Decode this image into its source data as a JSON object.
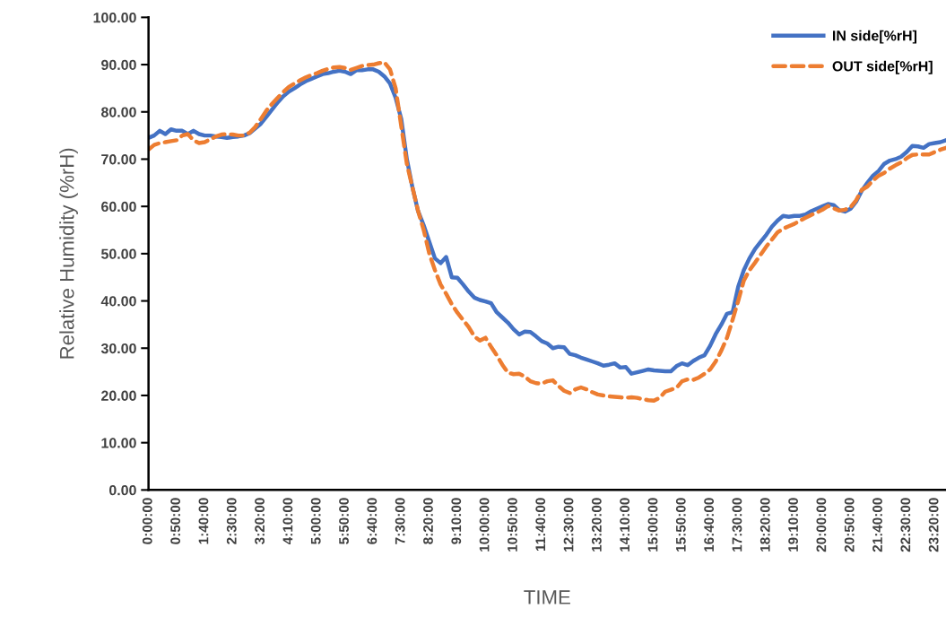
{
  "chart_data": {
    "type": "line",
    "xlabel": "TIME",
    "ylabel": "Relative Humidity (%rH)",
    "categories": [
      "0:00:00",
      null,
      null,
      null,
      null,
      "0:50:00",
      null,
      null,
      null,
      null,
      "1:40:00",
      null,
      null,
      null,
      null,
      "2:30:00",
      null,
      null,
      null,
      null,
      "3:20:00",
      null,
      null,
      null,
      null,
      "4:10:00",
      null,
      null,
      null,
      null,
      "5:00:00",
      null,
      null,
      null,
      null,
      "5:50:00",
      null,
      null,
      null,
      null,
      "6:40:00",
      null,
      null,
      null,
      null,
      "7:30:00",
      null,
      null,
      null,
      null,
      "8:20:00",
      null,
      null,
      null,
      null,
      "9:10:00",
      null,
      null,
      null,
      null,
      "10:00:00",
      null,
      null,
      null,
      null,
      "10:50:00",
      null,
      null,
      null,
      null,
      "11:40:00",
      null,
      null,
      null,
      null,
      "12:30:00",
      null,
      null,
      null,
      null,
      "13:20:00",
      null,
      null,
      null,
      null,
      "14:10:00",
      null,
      null,
      null,
      null,
      "15:00:00",
      null,
      null,
      null,
      null,
      "15:50:00",
      null,
      null,
      null,
      null,
      "16:40:00",
      null,
      null,
      null,
      null,
      "17:30:00",
      null,
      null,
      null,
      null,
      "18:20:00",
      null,
      null,
      null,
      null,
      "19:10:00",
      null,
      null,
      null,
      null,
      "20:00:00",
      null,
      null,
      null,
      null,
      "20:50:00",
      null,
      null,
      null,
      null,
      "21:40:00",
      null,
      null,
      null,
      null,
      "22:30:00",
      null,
      null,
      null,
      null,
      "23:20:00",
      null,
      null
    ],
    "series": [
      {
        "name": "IN side[%rH]",
        "color": "#4472c4",
        "line_style": "solid",
        "values": [
          74.5,
          75,
          76,
          75.3,
          76.3,
          76,
          76,
          75.3,
          76,
          75.3,
          75,
          75,
          74.8,
          74.7,
          74.5,
          74.7,
          74.8,
          75,
          75.5,
          76.5,
          77.5,
          79,
          80.5,
          82,
          83.3,
          84.3,
          85,
          85.8,
          86.5,
          87,
          87.5,
          88,
          88.2,
          88.5,
          88.7,
          88.5,
          88,
          88.8,
          88.8,
          89,
          89,
          88.5,
          87.5,
          86,
          83,
          78.5,
          70,
          64,
          59,
          56,
          52.5,
          49,
          48,
          49.3,
          45,
          44.9,
          43.5,
          42,
          40.7,
          40.2,
          39.9,
          39.5,
          37.6,
          36.5,
          35.4,
          34,
          32.9,
          33.5,
          33.4,
          32.5,
          31.5,
          31,
          30,
          30.3,
          30.2,
          28.8,
          28.5,
          28,
          27.6,
          27.2,
          26.8,
          26.3,
          26.5,
          26.8,
          25.9,
          26,
          24.6,
          24.9,
          25.2,
          25.5,
          25.3,
          25.2,
          25.1,
          25.1,
          26.2,
          26.8,
          26.4,
          27.3,
          28,
          28.5,
          30.5,
          33,
          35,
          37.3,
          37.6,
          43,
          46.5,
          49,
          51,
          52.5,
          54,
          55.7,
          57,
          58,
          57.8,
          58,
          58,
          58.3,
          59,
          59.5,
          60,
          60.5,
          60.3,
          59.2,
          58.9,
          59.5,
          61,
          63.3,
          65,
          66.5,
          67.5,
          69,
          69.7,
          70,
          70.5,
          71.5,
          72.8,
          72.7,
          72.4,
          73.2,
          73.4,
          73.6,
          74
        ]
      },
      {
        "name": "OUT side[%rH]",
        "color": "#ed7d31",
        "line_style": "dashed",
        "values": [
          72,
          73,
          73.4,
          73.6,
          73.8,
          74,
          75,
          75.3,
          74,
          73.4,
          73.6,
          74.2,
          74.8,
          75.2,
          75.3,
          75.2,
          75,
          75,
          75.6,
          76.8,
          78.5,
          80.3,
          81.7,
          83,
          84.2,
          85.3,
          86,
          86.7,
          87.3,
          87.8,
          88.2,
          88.7,
          89.1,
          89.4,
          89.5,
          89.3,
          88.9,
          89.3,
          89.7,
          89.9,
          90,
          90.3,
          90.5,
          89,
          85,
          77,
          69,
          64,
          59,
          55,
          50,
          46.5,
          43.5,
          41.5,
          39.3,
          37.5,
          36,
          34.5,
          32.5,
          31.6,
          32.2,
          30.3,
          28.5,
          26.5,
          24.8,
          24.5,
          24.6,
          24,
          23,
          22.6,
          22.5,
          23,
          23.2,
          22,
          21,
          20.5,
          21.3,
          21.7,
          21.3,
          20.7,
          20.2,
          20,
          19.8,
          19.7,
          19.6,
          19.5,
          19.6,
          19.5,
          19.2,
          19,
          18.9,
          19.5,
          20.8,
          21.2,
          21.6,
          23,
          23.4,
          23.3,
          23.8,
          24.6,
          25.5,
          27.2,
          29.5,
          32.2,
          36,
          40,
          44.3,
          46.5,
          48.1,
          49.8,
          51.5,
          53,
          54.5,
          55.3,
          55.8,
          56.3,
          57,
          57.6,
          58.2,
          58.7,
          59.3,
          60.1,
          59.6,
          59.1,
          59.3,
          59.8,
          61.3,
          63.5,
          64.2,
          65.5,
          66.5,
          67.1,
          68,
          68.7,
          69.3,
          70.2,
          70.9,
          71,
          71,
          71,
          71.5,
          72,
          72.4
        ]
      }
    ],
    "ylim": [
      0,
      100
    ],
    "yticks": [
      {
        "value": 0,
        "label": "0.00"
      },
      {
        "value": 10,
        "label": "10.00"
      },
      {
        "value": 20,
        "label": "20.00"
      },
      {
        "value": 30,
        "label": "30.00"
      },
      {
        "value": 40,
        "label": "40.00"
      },
      {
        "value": 50,
        "label": "50.00"
      },
      {
        "value": 60,
        "label": "60.00"
      },
      {
        "value": 70,
        "label": "70.00"
      },
      {
        "value": 80,
        "label": "80.00"
      },
      {
        "value": 90,
        "label": "90.00"
      },
      {
        "value": 100,
        "label": "100.00"
      }
    ],
    "grid": false,
    "legend": "top right",
    "marker": "none"
  }
}
